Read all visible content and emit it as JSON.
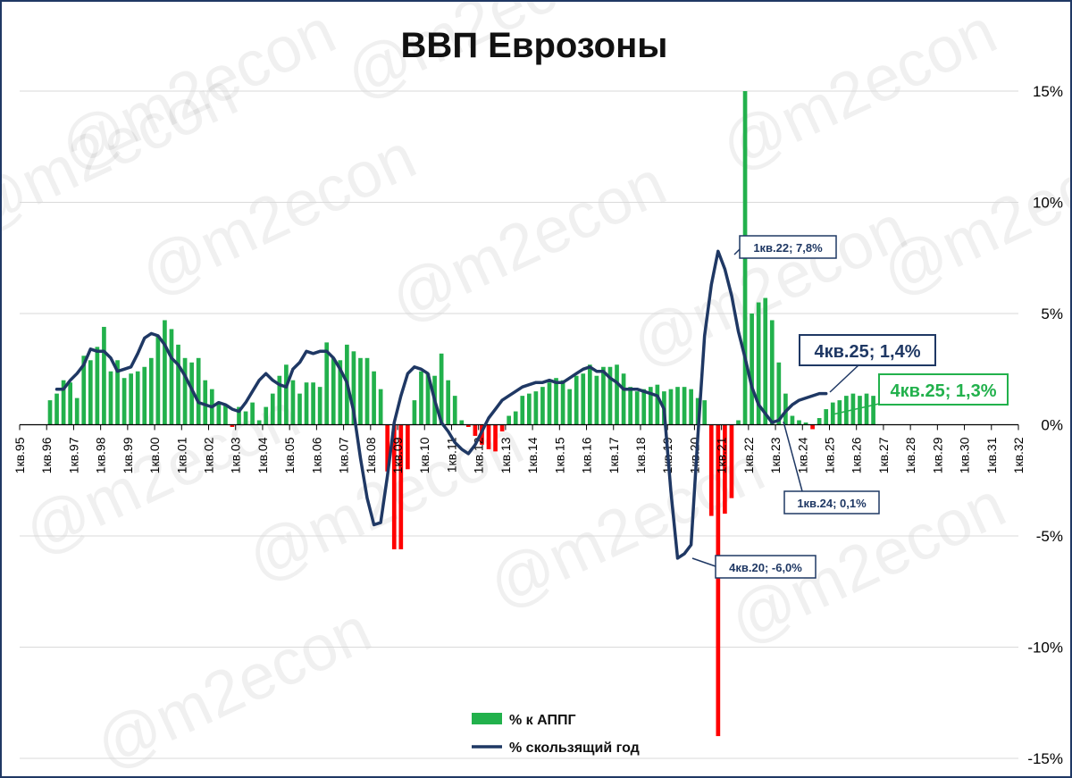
{
  "colors": {
    "positive_bar": "#22b14c",
    "negative_bar": "#ff0000",
    "line": "#1f3864",
    "grid": "#d9d9d9",
    "axis": "#000000"
  },
  "watermark": "@m2econ",
  "chart_data": {
    "type": "bar+line",
    "title": "ВВП Еврозоны",
    "xlabel": "",
    "ylabel": "",
    "ylim": [
      -15,
      15
    ],
    "yticks": [
      15,
      10,
      5,
      0,
      -5,
      -10,
      -15
    ],
    "ytick_labels": [
      "15%",
      "10%",
      "5%",
      "0%",
      "-5%",
      "-10%",
      "-15%"
    ],
    "x_start_year": 1995,
    "xtick_labels": [
      "1кв.95",
      "1кв.96",
      "1кв.97",
      "1кв.98",
      "1кв.99",
      "1кв.00",
      "1кв.01",
      "1кв.02",
      "1кв.03",
      "1кв.04",
      "1кв.05",
      "1кв.06",
      "1кв.07",
      "1кв.08",
      "1кв.09",
      "1кв.10",
      "1кв.11",
      "1кв.12",
      "1кв.13",
      "1кв.14",
      "1кв.15",
      "1кв.16",
      "1кв.17",
      "1кв.18",
      "1кв.19",
      "1кв.20",
      "1кв.21",
      "1кв.22",
      "1кв.23",
      "1кв.24",
      "1кв.25",
      "1кв.26",
      "1кв.27",
      "1кв.28",
      "1кв.29",
      "1кв.30",
      "1кв.31",
      "1кв.32"
    ],
    "grid": true,
    "legend_position": "bottom-center",
    "series": [
      {
        "name": "% к АППГ",
        "type": "bar",
        "first_point": "1кв.96",
        "values": [
          1.1,
          1.4,
          2.0,
          1.9,
          1.2,
          3.1,
          2.9,
          3.5,
          4.4,
          2.4,
          2.9,
          2.1,
          2.3,
          2.4,
          2.6,
          3.0,
          4.0,
          4.7,
          4.3,
          3.6,
          3.0,
          2.8,
          3.0,
          2.0,
          1.6,
          1.0,
          0.9,
          -0.1,
          0.8,
          0.6,
          1.0,
          0.2,
          0.8,
          1.4,
          2.2,
          2.7,
          2.0,
          1.4,
          1.9,
          1.9,
          1.7,
          3.7,
          3.0,
          2.9,
          3.6,
          3.3,
          3.0,
          3.0,
          2.4,
          1.6,
          -2.1,
          -5.6,
          -5.6,
          -2.0,
          1.1,
          2.4,
          2.3,
          2.2,
          3.2,
          2.0,
          1.3,
          0.2,
          -0.1,
          -0.5,
          -0.9,
          -1.1,
          -1.2,
          -0.3,
          0.4,
          0.6,
          1.3,
          1.4,
          1.5,
          1.7,
          1.9,
          2.1,
          2.0,
          1.6,
          2.2,
          2.3,
          2.7,
          2.2,
          2.6,
          2.6,
          2.7,
          2.3,
          1.7,
          1.5,
          1.6,
          1.7,
          1.8,
          1.5,
          1.6,
          1.7,
          1.7,
          1.6,
          1.2,
          1.1,
          -4.1,
          -14.0,
          -4.0,
          -3.3,
          0.2,
          15.0,
          5.0,
          5.5,
          5.7,
          4.7,
          2.8,
          1.4,
          0.4,
          0.2,
          0.1,
          -0.2,
          0.3,
          0.7,
          1.0,
          1.1,
          1.3,
          1.4,
          1.3,
          1.4,
          1.3
        ]
      },
      {
        "name": "% скользящий год",
        "type": "line",
        "first_point": "2кв.96",
        "values": [
          1.6,
          1.6,
          2.0,
          2.3,
          2.7,
          3.4,
          3.3,
          3.3,
          3.0,
          2.4,
          2.5,
          2.6,
          3.2,
          3.9,
          4.1,
          4.0,
          3.6,
          3.0,
          2.7,
          2.2,
          1.6,
          1.0,
          0.9,
          0.8,
          1.0,
          0.9,
          0.7,
          0.6,
          1.0,
          1.5,
          2.0,
          2.3,
          2.0,
          1.8,
          1.7,
          2.5,
          2.8,
          3.3,
          3.2,
          3.3,
          3.3,
          3.0,
          2.5,
          1.9,
          0.6,
          -1.5,
          -3.3,
          -4.5,
          -4.4,
          -2.3,
          0.1,
          1.3,
          2.3,
          2.6,
          2.5,
          2.3,
          1.1,
          0.1,
          -0.3,
          -0.8,
          -1.1,
          -1.3,
          -0.9,
          -0.3,
          0.3,
          0.7,
          1.1,
          1.3,
          1.5,
          1.7,
          1.8,
          1.9,
          1.9,
          2.0,
          1.9,
          1.9,
          2.1,
          2.3,
          2.5,
          2.6,
          2.4,
          2.4,
          2.1,
          1.9,
          1.6,
          1.6,
          1.6,
          1.5,
          1.4,
          1.3,
          0.7,
          -3.0,
          -6.0,
          -5.8,
          -5.4,
          -0.5,
          4.0,
          6.3,
          7.8,
          7.0,
          5.8,
          4.2,
          3.0,
          1.7,
          0.9,
          0.5,
          0.1,
          0.2,
          0.6,
          0.9,
          1.1,
          1.2,
          1.3,
          1.4,
          1.4
        ]
      }
    ],
    "annotations": [
      {
        "label": "1кв.22; 7,8%"
      },
      {
        "label": "4кв.20; -6,0%"
      },
      {
        "label": "1кв.24; 0,1%"
      },
      {
        "label": "4кв.25; 1,4%"
      },
      {
        "label": "4кв.25; 1,3%"
      }
    ]
  }
}
